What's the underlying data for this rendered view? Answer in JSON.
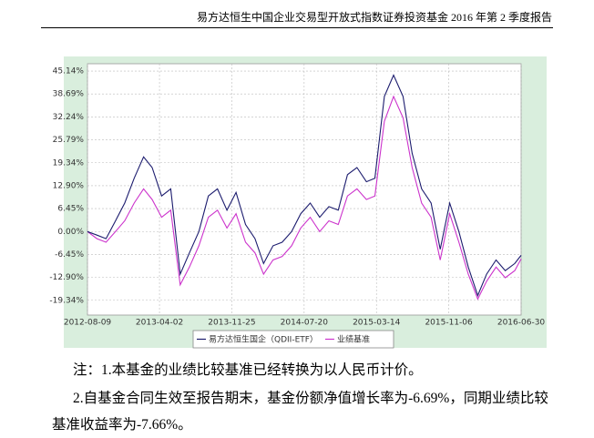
{
  "header": {
    "title": "易方达恒生中国企业交易型开放式指数证券投资基金 2016 年第 2 季度报告"
  },
  "chart_data": {
    "type": "line",
    "x": [
      "2012-08-09",
      "2012-09-09",
      "2012-10-09",
      "2012-11-09",
      "2012-12-09",
      "2013-01-09",
      "2013-02-09",
      "2013-03-09",
      "2013-04-09",
      "2013-05-09",
      "2013-06-09",
      "2013-07-09",
      "2013-08-09",
      "2013-09-09",
      "2013-10-09",
      "2013-11-09",
      "2013-12-09",
      "2014-01-09",
      "2014-02-09",
      "2014-03-09",
      "2014-04-09",
      "2014-05-09",
      "2014-06-09",
      "2014-07-09",
      "2014-08-09",
      "2014-09-09",
      "2014-10-09",
      "2014-11-09",
      "2014-12-09",
      "2015-01-09",
      "2015-02-09",
      "2015-03-09",
      "2015-04-09",
      "2015-05-09",
      "2015-06-09",
      "2015-07-09",
      "2015-08-09",
      "2015-09-09",
      "2015-10-09",
      "2015-11-09",
      "2015-12-09",
      "2016-01-09",
      "2016-02-09",
      "2016-03-09",
      "2016-04-09",
      "2016-05-09",
      "2016-06-09",
      "2016-06-30"
    ],
    "series": [
      {
        "name": "易方达恒生国企（QDII-ETF）",
        "color": "#1c1c6e",
        "values": [
          0,
          -1,
          -2,
          3,
          8,
          15,
          21,
          18,
          10,
          12,
          -12,
          -6,
          0,
          10,
          12,
          6,
          11,
          2,
          -2,
          -9,
          -4,
          -3,
          0,
          5,
          8,
          4,
          7,
          6,
          16,
          18,
          14,
          15,
          38,
          44,
          38,
          22,
          12,
          8,
          -5,
          8,
          0,
          -10,
          -18,
          -12,
          -8,
          -11,
          -9,
          -6.69
        ]
      },
      {
        "name": "业绩基准",
        "color": "#cc33cc",
        "values": [
          0,
          -2,
          -3,
          0,
          3,
          8,
          12,
          9,
          4,
          6,
          -15,
          -10,
          -4,
          4,
          6,
          1,
          5,
          -3,
          -6,
          -12,
          -8,
          -7,
          -4,
          1,
          4,
          0,
          3,
          2,
          10,
          12,
          9,
          10,
          31,
          38,
          32,
          18,
          8,
          4,
          -8,
          5,
          -3,
          -12,
          -19,
          -14,
          -10,
          -13,
          -11,
          -7.66
        ]
      }
    ],
    "xlim": [
      "2012-08-09",
      "2016-06-30"
    ],
    "xticks": [
      "2012-08-09",
      "2013-04-02",
      "2013-11-25",
      "2014-07-20",
      "2015-03-14",
      "2015-11-06",
      "2016-06-30"
    ],
    "ylim": [
      -23.5,
      47.2
    ],
    "yticks": [
      {
        "value": -19.34,
        "label": "-19.34%"
      },
      {
        "value": -12.9,
        "label": "-12.90%"
      },
      {
        "value": -6.45,
        "label": "-6.45%"
      },
      {
        "value": 0,
        "label": "0.00%"
      },
      {
        "value": 6.45,
        "label": "6.45%"
      },
      {
        "value": 12.9,
        "label": "12.90%"
      },
      {
        "value": 19.34,
        "label": "19.34%"
      },
      {
        "value": 25.79,
        "label": "25.79%"
      },
      {
        "value": 32.24,
        "label": "32.24%"
      },
      {
        "value": 38.69,
        "label": "38.69%"
      },
      {
        "value": 45.14,
        "label": "45.14%"
      }
    ],
    "grid": true
  },
  "notes": [
    "注：1.本基金的业绩比较基准已经转换为以人民币计价。",
    "2.自基金合同生效至报告期末，基金份额净值增长率为-6.69%，同期业绩比较基准收益率为-7.66%。"
  ]
}
